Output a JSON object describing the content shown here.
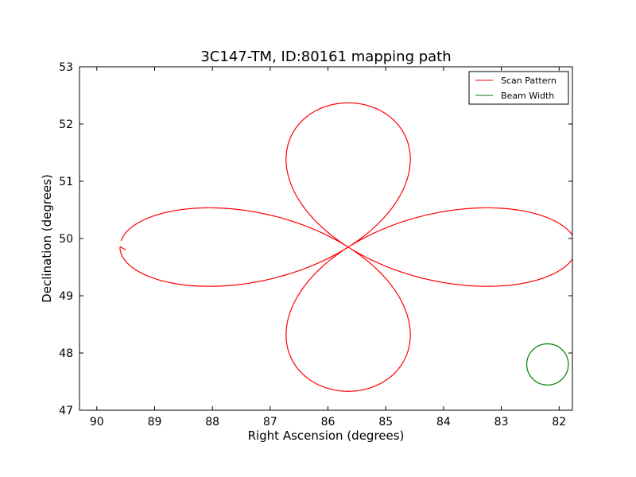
{
  "chart_data": {
    "type": "line",
    "title": "3C147-TM, ID:80161 mapping path",
    "xlabel": "Right Ascension (degrees)",
    "ylabel": "Declination (degrees)",
    "xlim": [
      90.3,
      81.77
    ],
    "ylim": [
      47,
      53
    ],
    "x_ticks": [
      90,
      89,
      88,
      87,
      86,
      85,
      84,
      83,
      82
    ],
    "y_ticks": [
      47,
      48,
      49,
      50,
      51,
      52,
      53
    ],
    "grid": false,
    "legend_position": "top-right",
    "center": {
      "ra": 85.65,
      "dec": 49.85
    },
    "series": [
      {
        "name": "Scan Pattern",
        "color": "#ff0000",
        "shape": "four-leaf rosette",
        "lobe_extent": {
          "ra_left": 89.6,
          "ra_right": 81.78,
          "dec_top": 52.37,
          "dec_bottom": 47.35
        },
        "start": {
          "ra": 89.6,
          "dec": 49.86
        },
        "end": {
          "ra": 89.5,
          "dec": 49.8
        }
      },
      {
        "name": "Beam Width",
        "color": "#008000",
        "shape": "circle",
        "center": {
          "ra": 82.2,
          "dec": 47.8
        },
        "radius_deg": 0.36
      }
    ]
  }
}
